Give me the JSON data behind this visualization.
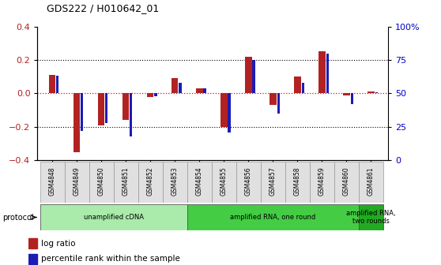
{
  "title": "GDS222 / H010642_01",
  "samples": [
    "GSM4848",
    "GSM4849",
    "GSM4850",
    "GSM4851",
    "GSM4852",
    "GSM4853",
    "GSM4854",
    "GSM4855",
    "GSM4856",
    "GSM4857",
    "GSM4858",
    "GSM4859",
    "GSM4860",
    "GSM4861"
  ],
  "log_ratio": [
    0.11,
    -0.35,
    -0.19,
    -0.16,
    -0.02,
    0.09,
    0.03,
    -0.2,
    0.22,
    -0.07,
    0.1,
    0.25,
    -0.01,
    0.01
  ],
  "percentile_rank": [
    63,
    22,
    28,
    18,
    48,
    58,
    54,
    21,
    75,
    35,
    58,
    80,
    42,
    51
  ],
  "ylim_left": [
    -0.4,
    0.4
  ],
  "ylim_right": [
    0,
    100
  ],
  "yticks_left": [
    -0.4,
    -0.2,
    0.0,
    0.2,
    0.4
  ],
  "yticks_right": [
    0,
    25,
    50,
    75,
    100
  ],
  "ytick_labels_right": [
    "0",
    "25",
    "50",
    "75",
    "100%"
  ],
  "bar_color_log": "#B22222",
  "bar_color_pct": "#1C1CB4",
  "protocol_groups": [
    {
      "start": 0,
      "end": 5,
      "label": "unamplified cDNA",
      "color": "#AAEAAA"
    },
    {
      "start": 6,
      "end": 12,
      "label": "amplified RNA, one round",
      "color": "#44CC44"
    },
    {
      "start": 13,
      "end": 13,
      "label": "amplified RNA,\ntwo rounds",
      "color": "#22AA22"
    }
  ],
  "legend_log_label": "log ratio",
  "legend_pct_label": "percentile rank within the sample",
  "protocol_label": "protocol",
  "dotted_line_color": "#000000",
  "zero_line_color": "#FF0000",
  "background_color": "#FFFFFF"
}
